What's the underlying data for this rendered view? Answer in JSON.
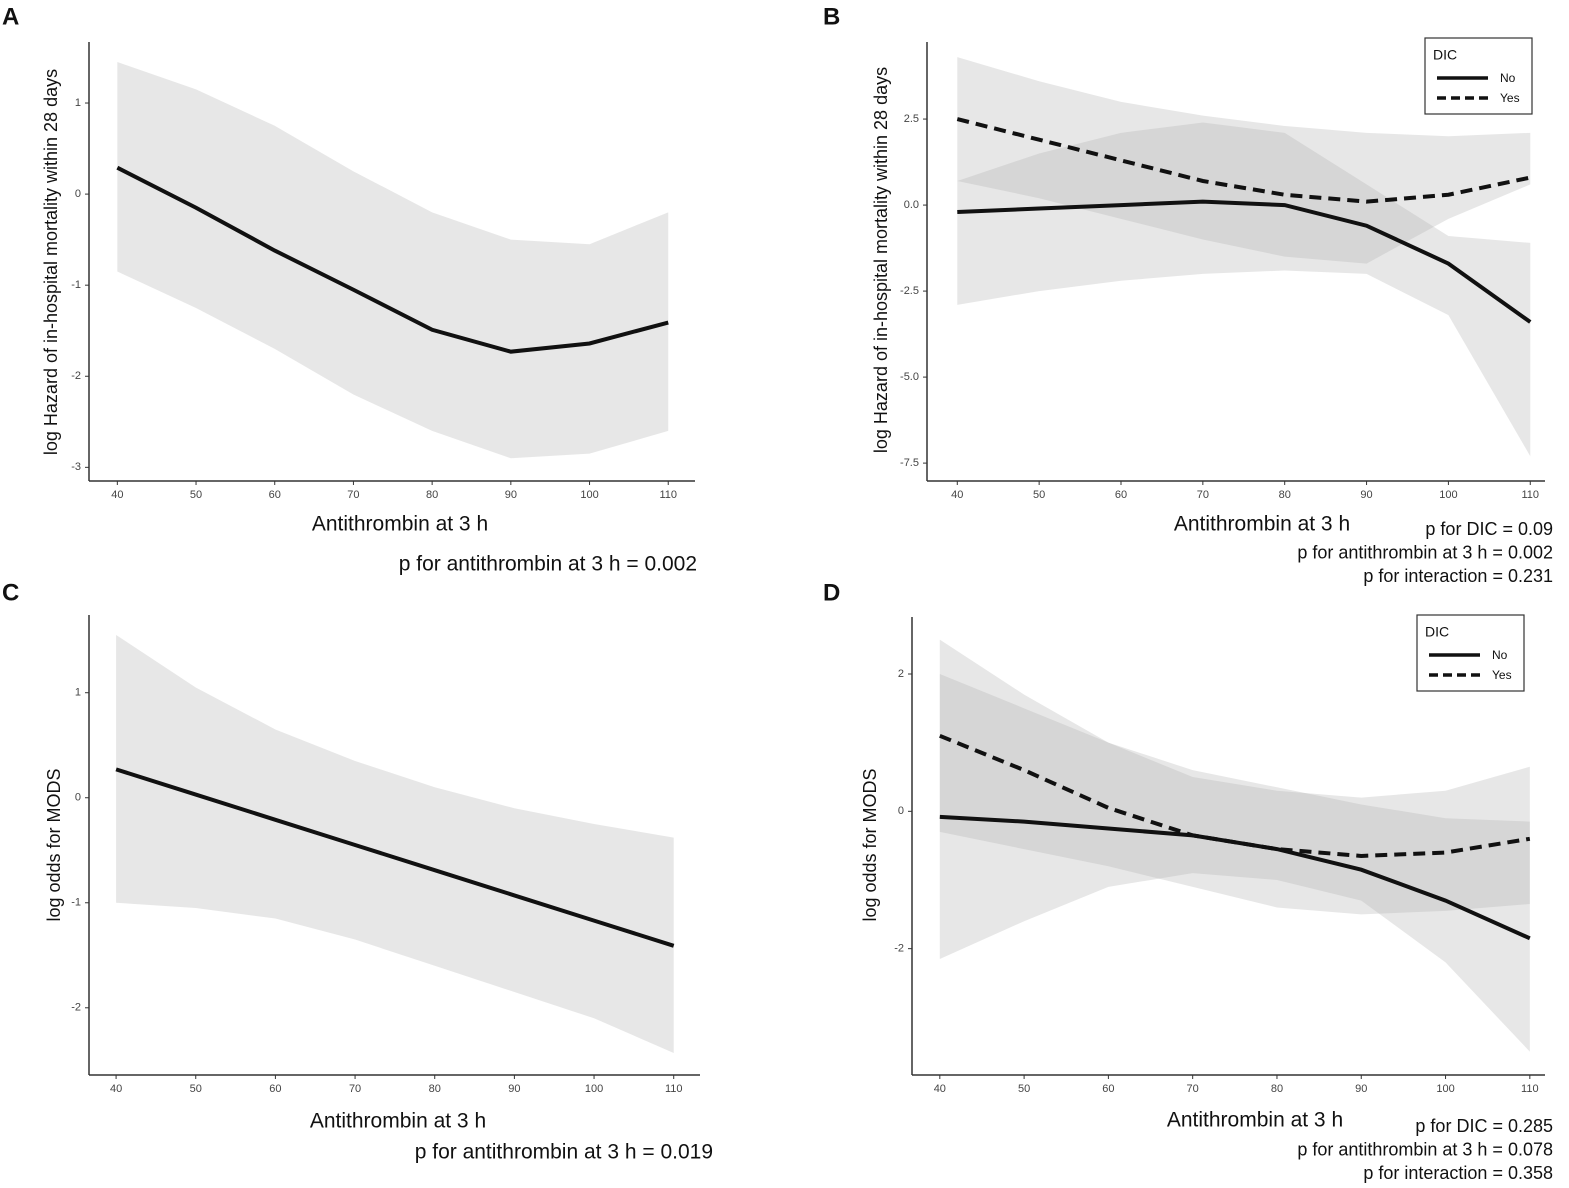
{
  "chart_data": [
    {
      "type": "line",
      "panel_label": "A",
      "ylabel": "log Hazard of in-hospital mortality within 28 days",
      "xlabel": "Antithrombin at 3 h",
      "annotations": [
        "p for antithrombin at 3 h = 0.002"
      ],
      "x": [
        40,
        50,
        60,
        70,
        80,
        90,
        100,
        110
      ],
      "xlim": [
        36.4,
        113.4
      ],
      "xticks": [
        40,
        50,
        60,
        70,
        80,
        90,
        100,
        110
      ],
      "ylim": [
        -3.15,
        1.67
      ],
      "yticks": [
        1,
        0,
        -1,
        -2,
        -3
      ],
      "band_color": "#b0b0b0",
      "series": [
        {
          "color": "#111111",
          "linestyle": "solid",
          "values": [
            0.29,
            -0.15,
            -0.62,
            -1.05,
            -1.49,
            -1.73,
            -1.64,
            -1.41
          ],
          "upper": [
            1.45,
            1.15,
            0.75,
            0.25,
            -0.2,
            -0.5,
            -0.55,
            -0.2
          ],
          "lower": [
            -0.85,
            -1.25,
            -1.7,
            -2.2,
            -2.6,
            -2.9,
            -2.85,
            -2.6
          ]
        }
      ]
    },
    {
      "type": "line",
      "panel_label": "B",
      "ylabel": "log Hazard of in-hospital mortality within 28 days",
      "xlabel": "Antithrombin at 3 h",
      "annotations": [
        "p for DIC = 0.09",
        "p for antithrombin at 3 h = 0.002",
        "p for interaction = 0.231"
      ],
      "x": [
        40,
        50,
        60,
        70,
        80,
        90,
        100,
        110
      ],
      "xlim": [
        36.3,
        111.8
      ],
      "xticks": [
        40,
        50,
        60,
        70,
        80,
        90,
        100,
        110
      ],
      "ylim": [
        -8.02,
        4.74
      ],
      "yticks": [
        2.5,
        {
          "value": 0,
          "label": "0.0"
        },
        -2.5,
        {
          "value": -5,
          "label": "-5.0"
        },
        -7.5
      ],
      "band_color": "#b0b0b0",
      "legend_title": "DIC",
      "series": [
        {
          "name": "No",
          "color": "#111111",
          "linestyle": "solid",
          "values": [
            -0.2,
            -0.1,
            0.0,
            0.1,
            0.0,
            -0.6,
            -1.7,
            -3.4
          ],
          "upper": [
            0.7,
            1.5,
            2.1,
            2.4,
            2.1,
            0.6,
            -0.9,
            -1.1
          ],
          "lower": [
            -2.9,
            -2.5,
            -2.2,
            -2.0,
            -1.9,
            -2.0,
            -3.2,
            -7.3
          ]
        },
        {
          "name": "Yes",
          "color": "#111111",
          "linestyle": "dashed",
          "values": [
            2.5,
            1.9,
            1.3,
            0.7,
            0.3,
            0.1,
            0.3,
            0.8
          ],
          "upper": [
            4.3,
            3.6,
            3.0,
            2.6,
            2.3,
            2.1,
            2.0,
            2.1
          ],
          "lower": [
            0.7,
            0.2,
            -0.4,
            -1.0,
            -1.5,
            -1.7,
            -0.4,
            0.6
          ]
        }
      ]
    },
    {
      "type": "line",
      "panel_label": "C",
      "ylabel": "log odds for MODS",
      "xlabel": "Antithrombin at 3 h",
      "annotations": [
        "p for antithrombin at 3 h = 0.019"
      ],
      "x": [
        40,
        50,
        60,
        70,
        80,
        90,
        100,
        110
      ],
      "xlim": [
        36.6,
        113.3
      ],
      "xticks": [
        40,
        50,
        60,
        70,
        80,
        90,
        100,
        110
      ],
      "ylim": [
        -2.64,
        1.74
      ],
      "yticks": [
        1,
        0,
        -1,
        -2
      ],
      "band_color": "#b0b0b0",
      "series": [
        {
          "color": "#111111",
          "linestyle": "solid",
          "values": [
            0.27,
            0.03,
            -0.21,
            -0.45,
            -0.69,
            -0.93,
            -1.17,
            -1.41
          ],
          "upper": [
            1.55,
            1.05,
            0.65,
            0.35,
            0.1,
            -0.1,
            -0.25,
            -0.38
          ],
          "lower": [
            -1.0,
            -1.05,
            -1.15,
            -1.35,
            -1.6,
            -1.85,
            -2.1,
            -2.43
          ]
        }
      ]
    },
    {
      "type": "line",
      "panel_label": "D",
      "ylabel": "log odds for MODS",
      "xlabel": "Antithrombin at 3 h",
      "annotations": [
        "p for DIC = 0.285",
        "p for antithrombin at 3 h = 0.078",
        "p for interaction = 0.358"
      ],
      "x": [
        40,
        50,
        60,
        70,
        80,
        90,
        100,
        110
      ],
      "xlim": [
        36.7,
        111.8
      ],
      "xticks": [
        40,
        50,
        60,
        70,
        80,
        90,
        100,
        110
      ],
      "ylim": [
        -3.84,
        2.83
      ],
      "yticks": [
        2,
        0,
        -2
      ],
      "band_color": "#b0b0b0",
      "legend_title": "DIC",
      "series": [
        {
          "name": "No",
          "color": "#111111",
          "linestyle": "solid",
          "values": [
            -0.08,
            -0.15,
            -0.25,
            -0.35,
            -0.55,
            -0.85,
            -1.3,
            -1.85
          ],
          "upper": [
            2.5,
            1.7,
            1.0,
            0.5,
            0.3,
            0.2,
            0.3,
            0.65
          ],
          "lower": [
            -2.15,
            -1.6,
            -1.1,
            -0.9,
            -1.0,
            -1.3,
            -2.2,
            -3.5
          ]
        },
        {
          "name": "Yes",
          "color": "#111111",
          "linestyle": "dashed",
          "values": [
            1.1,
            0.6,
            0.05,
            -0.35,
            -0.55,
            -0.65,
            -0.6,
            -0.4
          ],
          "upper": [
            2.0,
            1.5,
            1.0,
            0.6,
            0.35,
            0.1,
            -0.1,
            -0.15
          ],
          "lower": [
            -0.3,
            -0.55,
            -0.8,
            -1.1,
            -1.4,
            -1.5,
            -1.45,
            -1.35
          ]
        }
      ]
    }
  ]
}
